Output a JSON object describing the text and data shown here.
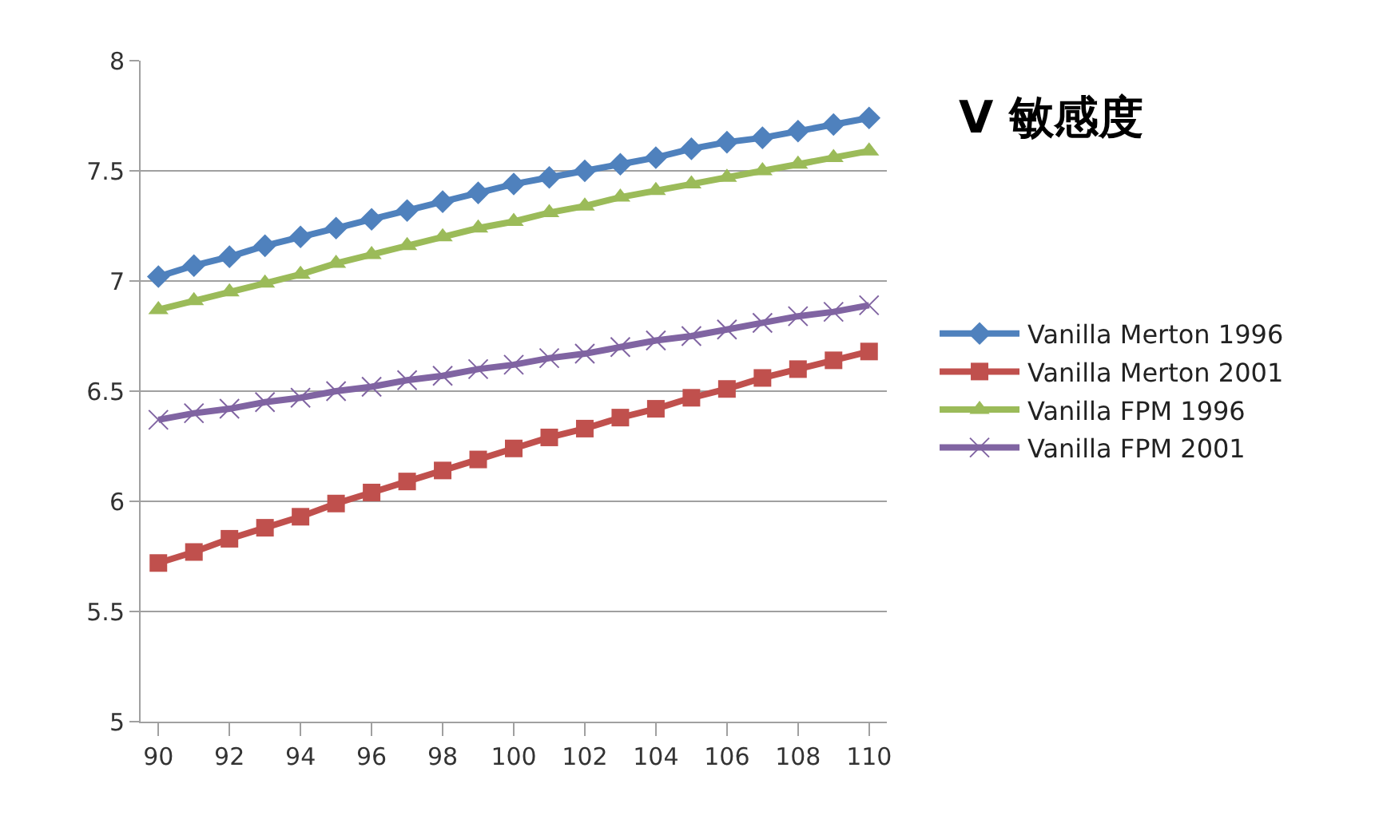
{
  "chart_data": {
    "type": "line",
    "title": "V 敏感度",
    "x": [
      90,
      91,
      92,
      93,
      94,
      95,
      96,
      97,
      98,
      99,
      100,
      101,
      102,
      103,
      104,
      105,
      106,
      107,
      108,
      109,
      110
    ],
    "xlim": [
      89.5,
      110.5
    ],
    "xticks": [
      90,
      92,
      94,
      96,
      98,
      100,
      102,
      104,
      106,
      108,
      110
    ],
    "ylim": [
      5,
      8
    ],
    "yticks": [
      5,
      5.5,
      6,
      6.5,
      7,
      7.5,
      8
    ],
    "grid": "y",
    "legend": "right",
    "series": [
      {
        "name": "Vanilla Merton 1996",
        "color": "#4f81bd",
        "marker": "diamond",
        "values": [
          7.02,
          7.07,
          7.11,
          7.16,
          7.2,
          7.24,
          7.28,
          7.32,
          7.36,
          7.4,
          7.44,
          7.47,
          7.5,
          7.53,
          7.56,
          7.6,
          7.63,
          7.65,
          7.68,
          7.71,
          7.74
        ]
      },
      {
        "name": "Vanilla Merton 2001",
        "color": "#c0504d",
        "marker": "square",
        "values": [
          5.72,
          5.77,
          5.83,
          5.88,
          5.93,
          5.99,
          6.04,
          6.09,
          6.14,
          6.19,
          6.24,
          6.29,
          6.33,
          6.38,
          6.42,
          6.47,
          6.51,
          6.56,
          6.6,
          6.64,
          6.68
        ]
      },
      {
        "name": "Vanilla FPM 1996",
        "color": "#9bbb59",
        "marker": "triangle",
        "values": [
          6.87,
          6.91,
          6.95,
          6.99,
          7.03,
          7.08,
          7.12,
          7.16,
          7.2,
          7.24,
          7.27,
          7.31,
          7.34,
          7.38,
          7.41,
          7.44,
          7.47,
          7.5,
          7.53,
          7.56,
          7.59
        ]
      },
      {
        "name": "Vanilla FPM 2001",
        "color": "#8064a2",
        "marker": "cross",
        "values": [
          6.37,
          6.4,
          6.42,
          6.45,
          6.47,
          6.5,
          6.52,
          6.55,
          6.57,
          6.6,
          6.62,
          6.65,
          6.67,
          6.7,
          6.73,
          6.75,
          6.78,
          6.81,
          6.84,
          6.86,
          6.89
        ]
      }
    ]
  }
}
